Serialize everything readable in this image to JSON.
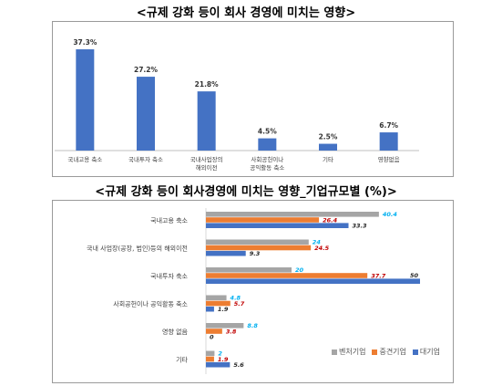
{
  "chart_data": [
    {
      "type": "bar",
      "title": "<규제 강화 등이 회사 경영에 미치는 영향>",
      "categories": [
        "국내고용 축소",
        "국내투자 축소",
        "국내사업장의\n해외이전",
        "사회공헌이나\n공익활동 축소",
        "기타",
        "영향없음"
      ],
      "values": [
        37.3,
        27.2,
        21.8,
        4.5,
        2.5,
        6.7
      ],
      "value_labels": [
        "37.3%",
        "27.2%",
        "21.8%",
        "4.5%",
        "2.5%",
        "6.7%"
      ],
      "ylim": [
        0,
        40
      ],
      "grid": false,
      "colors": {
        "bar": "#4472C4",
        "axis": "#bfbfbf"
      }
    },
    {
      "type": "bar",
      "orientation": "horizontal",
      "title": "<규제 강화 등이 회사경영에 미치는 영향_기업규모별 (%)>",
      "categories": [
        "국내고용 축소",
        "국내 사업장(공장, 법인)등의 해외이전",
        "국내투자 축소",
        "사회공헌이나 공익활동 축소",
        "영향 없음",
        "기타"
      ],
      "series": [
        {
          "name": "벤처기업",
          "values": [
            40.4,
            24,
            20,
            4.8,
            8.8,
            2
          ],
          "labels": [
            "40.4",
            "24",
            "20",
            "4.8",
            "8.8",
            "2"
          ],
          "color": "#A5A5A5",
          "label_color": "#00B0F0"
        },
        {
          "name": "중견기업",
          "values": [
            26.4,
            24.5,
            37.7,
            5.7,
            3.8,
            1.9
          ],
          "labels": [
            "26.4",
            "24.5",
            "37.7",
            "5.7",
            "3.8",
            "1.9"
          ],
          "color": "#ED7D31",
          "label_color": "#C00000"
        },
        {
          "name": "대기업",
          "values": [
            33.3,
            9.3,
            50,
            1.9,
            0,
            5.6
          ],
          "labels": [
            "33.3",
            "9.3",
            "50",
            "1.9",
            "0",
            "5.6"
          ],
          "color": "#4472C4",
          "label_color": "#262626"
        }
      ],
      "xlim": [
        0,
        50
      ],
      "legend_position": "bottom-right",
      "grid": false
    }
  ]
}
